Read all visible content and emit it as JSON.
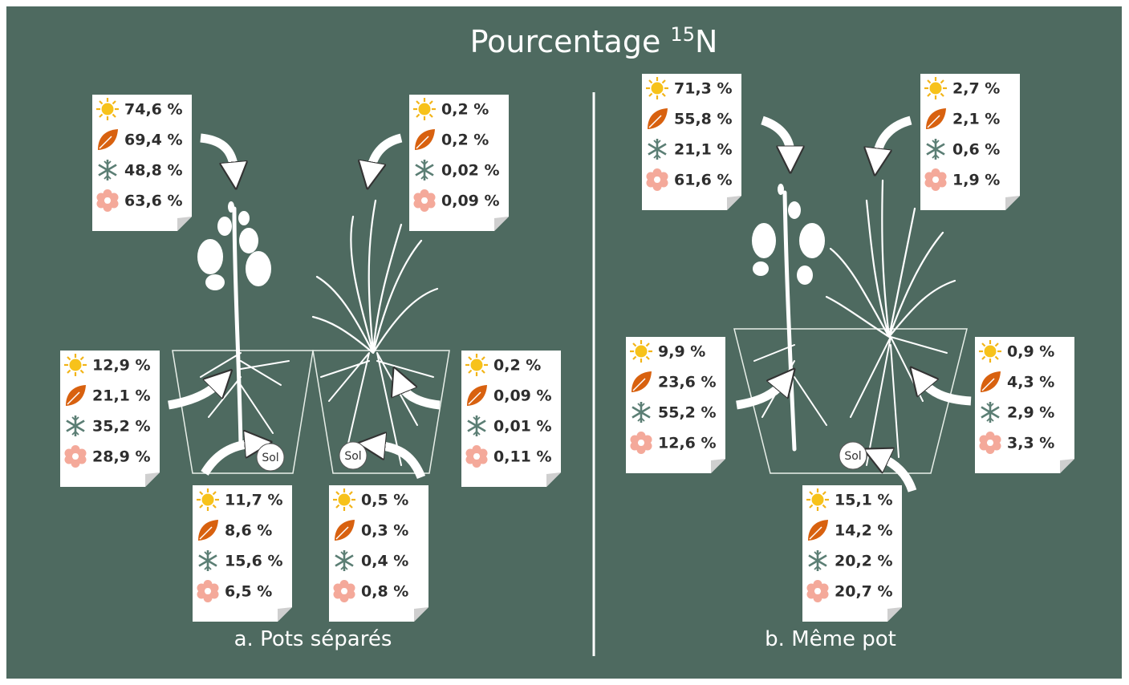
{
  "title": {
    "text": "Pourcentage",
    "superscript": "15",
    "suffix": "N"
  },
  "panels": [
    {
      "caption": "a. Pots séparés",
      "soil_labels": [
        "Sol",
        "Sol"
      ],
      "notes": [
        {
          "values": [
            "74,6 %",
            "69,4 %",
            "48,8 %",
            "63,6 %"
          ]
        },
        {
          "values": [
            "0,2 %",
            "0,2 %",
            "0,02 %",
            "0,09 %"
          ]
        },
        {
          "values": [
            "12,9 %",
            "21,1 %",
            "35,2 %",
            "28,9 %"
          ]
        },
        {
          "values": [
            "0,2 %",
            "0,09 %",
            "0,01 %",
            "0,11 %"
          ]
        },
        {
          "values": [
            "11,7 %",
            "8,6 %",
            "15,6 %",
            "6,5 %"
          ]
        },
        {
          "values": [
            "0,5 %",
            "0,3 %",
            "0,4 %",
            "0,8 %"
          ]
        }
      ]
    },
    {
      "caption": "b. Même pot",
      "soil_labels": [
        "Sol"
      ],
      "notes": [
        {
          "values": [
            "71,3 %",
            "55,8 %",
            "21,1 %",
            "61,6 %"
          ]
        },
        {
          "values": [
            "2,7 %",
            "2,1 %",
            "0,6 %",
            "1,9 %"
          ]
        },
        {
          "values": [
            "9,9 %",
            "23,6 %",
            "55,2 %",
            "12,6 %"
          ]
        },
        {
          "values": [
            "0,9 %",
            "4,3 %",
            "2,9 %",
            "3,3 %"
          ]
        },
        {
          "values": [
            "15,1 %",
            "14,2 %",
            "20,2 %",
            "20,7 %"
          ]
        }
      ]
    }
  ]
}
